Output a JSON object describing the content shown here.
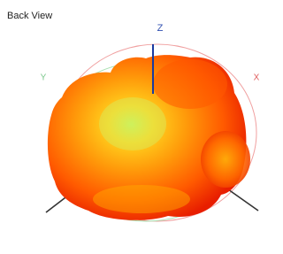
{
  "title": "Back View",
  "axes": {
    "z": "Z",
    "y": "Y",
    "x": "X"
  }
}
